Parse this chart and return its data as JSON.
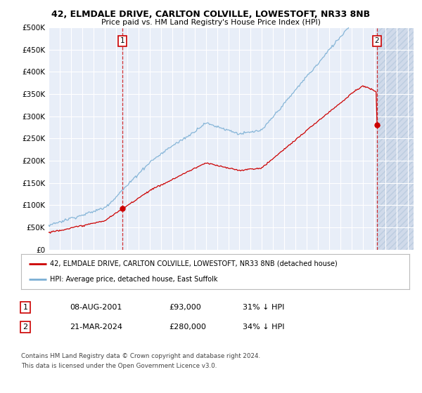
{
  "title_line1": "42, ELMDALE DRIVE, CARLTON COLVILLE, LOWESTOFT, NR33 8NB",
  "title_line2": "Price paid vs. HM Land Registry's House Price Index (HPI)",
  "ylabel_ticks": [
    "£0",
    "£50K",
    "£100K",
    "£150K",
    "£200K",
    "£250K",
    "£300K",
    "£350K",
    "£400K",
    "£450K",
    "£500K"
  ],
  "ytick_values": [
    0,
    50000,
    100000,
    150000,
    200000,
    250000,
    300000,
    350000,
    400000,
    450000,
    500000
  ],
  "xlim_start": 1995.0,
  "xlim_end": 2027.5,
  "ylim_min": 0,
  "ylim_max": 500000,
  "hpi_color": "#7BAFD4",
  "price_color": "#CC0000",
  "transaction1_year": 2001.6,
  "transaction1_price": 93000,
  "transaction2_year": 2024.22,
  "transaction2_price": 280000,
  "legend_red_label": "42, ELMDALE DRIVE, CARLTON COLVILLE, LOWESTOFT, NR33 8NB (detached house)",
  "legend_blue_label": "HPI: Average price, detached house, East Suffolk",
  "footer_text1": "Contains HM Land Registry data © Crown copyright and database right 2024.",
  "footer_text2": "This data is licensed under the Open Government Licence v3.0.",
  "table_row1": [
    "1",
    "08-AUG-2001",
    "£93,000",
    "31% ↓ HPI"
  ],
  "table_row2": [
    "2",
    "21-MAR-2024",
    "£280,000",
    "34% ↓ HPI"
  ],
  "background_color": "#E8EEF8",
  "grid_color": "#FFFFFF",
  "future_color": "#D0DAEA",
  "hatch_color": "#BCCDE0"
}
